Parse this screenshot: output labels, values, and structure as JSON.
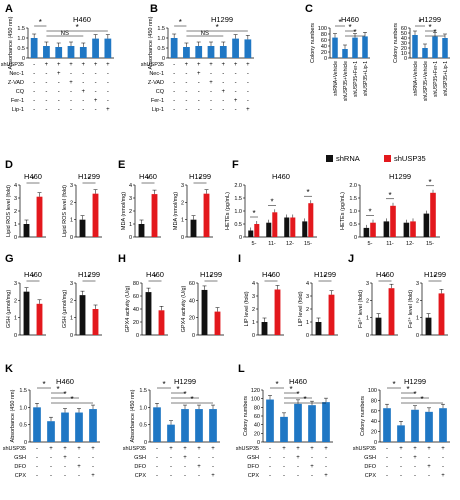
{
  "colors": {
    "blue": "#1f77c4",
    "black": "#111111",
    "red": "#e3181d"
  },
  "legend": {
    "items": [
      {
        "label": "shRNA",
        "color": "#111111"
      },
      {
        "label": "shUSP35",
        "color": "#e3181d"
      }
    ]
  },
  "chart_data": [
    {
      "panel": "A",
      "type": "bar",
      "title": "H460",
      "ylabel": "Absorbance (450 nm)",
      "ylim": [
        0,
        1.5
      ],
      "yticks": [
        "0",
        "0.5",
        "1.0",
        "1.5"
      ],
      "values": [
        1.0,
        0.6,
        0.55,
        0.6,
        0.55,
        0.97,
        0.97
      ],
      "rows": [
        {
          "label": "shUSP35",
          "signs": [
            "-",
            "+",
            "+",
            "+",
            "+",
            "+",
            "+"
          ]
        },
        {
          "label": "Nec-1",
          "signs": [
            "-",
            "-",
            "+",
            "-",
            "-",
            "-",
            "-"
          ]
        },
        {
          "label": "Z-VAD",
          "signs": [
            "-",
            "-",
            "-",
            "+",
            "-",
            "-",
            "-"
          ]
        },
        {
          "label": "CQ",
          "signs": [
            "-",
            "-",
            "-",
            "-",
            "+",
            "-",
            "-"
          ]
        },
        {
          "label": "Fer-1",
          "signs": [
            "-",
            "-",
            "-",
            "-",
            "-",
            "+",
            "-"
          ]
        },
        {
          "label": "Lip-1",
          "signs": [
            "-",
            "-",
            "-",
            "-",
            "-",
            "-",
            "+"
          ]
        }
      ],
      "annotations": [
        "*",
        "*",
        "NS"
      ]
    },
    {
      "panel": "B",
      "type": "bar",
      "title": "H1299",
      "ylabel": "Absorbance (450 nm)",
      "ylim": [
        0,
        1.5
      ],
      "yticks": [
        "0",
        "0.5",
        "1.0",
        "1.5"
      ],
      "values": [
        1.0,
        0.55,
        0.6,
        0.6,
        0.6,
        0.97,
        0.93
      ],
      "rows": [
        {
          "label": "shUSP35",
          "signs": [
            "-",
            "+",
            "+",
            "+",
            "+",
            "+",
            "+"
          ]
        },
        {
          "label": "Nec-1",
          "signs": [
            "-",
            "-",
            "+",
            "-",
            "-",
            "-",
            "-"
          ]
        },
        {
          "label": "Z-VAD",
          "signs": [
            "-",
            "-",
            "-",
            "+",
            "-",
            "-",
            "-"
          ]
        },
        {
          "label": "CQ",
          "signs": [
            "-",
            "-",
            "-",
            "-",
            "+",
            "-",
            "-"
          ]
        },
        {
          "label": "Fer-1",
          "signs": [
            "-",
            "-",
            "-",
            "-",
            "-",
            "+",
            "-"
          ]
        },
        {
          "label": "Lip-1",
          "signs": [
            "-",
            "-",
            "-",
            "-",
            "-",
            "-",
            "+"
          ]
        }
      ],
      "annotations": [
        "*",
        "*",
        "NS"
      ]
    },
    {
      "panel": "C",
      "type": "bar",
      "title": "H460",
      "ylabel": "Colony numbers",
      "ylim": [
        0,
        100
      ],
      "yticks": [
        "0",
        "20",
        "40",
        "60",
        "80",
        "100"
      ],
      "categories": [
        "shRNA+Vehicle",
        "shUSP35+Vehicle",
        "shUSP35+Fer-1",
        "shUSP35+Lip-1"
      ],
      "values": [
        68,
        30,
        68,
        72
      ],
      "annotations": [
        "*",
        "*",
        "*"
      ]
    },
    {
      "panel": "C",
      "type": "bar",
      "title": "H1299",
      "ylabel": "Colony numbers",
      "ylim": [
        0,
        60
      ],
      "yticks": [
        "0",
        "10",
        "20",
        "30",
        "40",
        "50",
        "60"
      ],
      "categories": [
        "shRNA+Vehicle",
        "shUSP35+Vehicle",
        "shUSP35+Fer-1",
        "shUSP35+Lip-1"
      ],
      "values": [
        46,
        20,
        43,
        40
      ],
      "annotations": [
        "*",
        "*",
        "*"
      ]
    },
    {
      "panel": "D",
      "type": "bar",
      "title": "H460",
      "ylabel": "Lipid ROS level (fold)",
      "ylim": [
        0,
        4
      ],
      "yticks": [
        "0",
        "1",
        "2",
        "3",
        "4"
      ],
      "values": [
        1.0,
        3.1
      ],
      "annotations": [
        "*"
      ]
    },
    {
      "panel": "D",
      "type": "bar",
      "title": "H1299",
      "ylabel": "Lipid ROS level (fold)",
      "ylim": [
        0,
        3
      ],
      "yticks": [
        "0",
        "1",
        "2",
        "3"
      ],
      "values": [
        1.0,
        2.5
      ],
      "annotations": [
        "*"
      ]
    },
    {
      "panel": "E",
      "type": "bar",
      "title": "H460",
      "ylabel": "MDA (nmol/mg)",
      "ylim": [
        0,
        4
      ],
      "yticks": [
        "0",
        "1",
        "2",
        "3",
        "4"
      ],
      "values": [
        1.0,
        3.3
      ],
      "annotations": [
        "*"
      ]
    },
    {
      "panel": "E",
      "type": "bar",
      "title": "H1299",
      "ylabel": "MDA (nmol/mg)",
      "ylim": [
        0,
        3
      ],
      "yticks": [
        "0",
        "1",
        "2",
        "3"
      ],
      "values": [
        1.0,
        2.5
      ],
      "annotations": [
        "*"
      ]
    },
    {
      "panel": "F",
      "type": "grouped-bar",
      "title": "H460",
      "ylabel": "HETEs (pg/mL)",
      "ylim": [
        0,
        2.0
      ],
      "yticks": [
        "0",
        "0.5",
        "1.0",
        "1.5",
        "2.0"
      ],
      "categories": [
        "5-",
        "11-",
        "12-",
        "15-"
      ],
      "series": [
        {
          "name": "shRNA",
          "values": [
            0.25,
            0.55,
            0.75,
            0.6
          ]
        },
        {
          "name": "shUSP35",
          "values": [
            0.5,
            0.95,
            0.75,
            1.3
          ]
        }
      ],
      "annotations": [
        "*",
        "*",
        "*"
      ]
    },
    {
      "panel": "F",
      "type": "grouped-bar",
      "title": "H1299",
      "ylabel": "HETEs (pg/mL)",
      "ylim": [
        0,
        2.0
      ],
      "yticks": [
        "0",
        "0.5",
        "1.0",
        "1.5",
        "2.0"
      ],
      "categories": [
        "5-",
        "11-",
        "12-",
        "15-"
      ],
      "series": [
        {
          "name": "shRNA",
          "values": [
            0.35,
            0.6,
            0.55,
            0.9
          ]
        },
        {
          "name": "shUSP35",
          "values": [
            0.55,
            1.2,
            0.6,
            1.7
          ]
        }
      ],
      "annotations": [
        "*",
        "*",
        "*"
      ]
    },
    {
      "panel": "G",
      "type": "bar",
      "title": "H460",
      "ylabel": "GSH (μmol/mg)",
      "ylim": [
        0,
        3
      ],
      "yticks": [
        "0",
        "1",
        "2",
        "3"
      ],
      "values": [
        2.5,
        1.8
      ],
      "annotations": [
        "*"
      ]
    },
    {
      "panel": "G",
      "type": "bar",
      "title": "H1299",
      "ylabel": "GSH (μmol/mg)",
      "ylim": [
        0,
        3
      ],
      "yticks": [
        "0",
        "1",
        "2",
        "3"
      ],
      "values": [
        2.3,
        1.5
      ],
      "annotations": [
        "*"
      ]
    },
    {
      "panel": "H",
      "type": "bar",
      "title": "H460",
      "ylabel": "GPX4 activity (U/g)",
      "ylim": [
        0,
        80
      ],
      "yticks": [
        "0",
        "20",
        "40",
        "60",
        "80"
      ],
      "values": [
        66,
        38
      ],
      "annotations": [
        "*"
      ]
    },
    {
      "panel": "H",
      "type": "bar",
      "title": "H1299",
      "ylabel": "GPX4 activity (U/g)",
      "ylim": [
        0,
        60
      ],
      "yticks": [
        "0",
        "20",
        "40",
        "60"
      ],
      "values": [
        52,
        27
      ],
      "annotations": [
        "*"
      ]
    },
    {
      "panel": "I",
      "type": "bar",
      "title": "H460",
      "ylabel": "LIP level (fold)",
      "ylim": [
        0,
        4
      ],
      "yticks": [
        "0",
        "1",
        "2",
        "3",
        "4"
      ],
      "values": [
        1.0,
        3.5
      ],
      "annotations": [
        "*"
      ]
    },
    {
      "panel": "I",
      "type": "bar",
      "title": "H1299",
      "ylabel": "LIP level (fold)",
      "ylim": [
        0,
        4
      ],
      "yticks": [
        "0",
        "1",
        "2",
        "3",
        "4"
      ],
      "values": [
        1.0,
        3.1
      ],
      "annotations": [
        "*"
      ]
    },
    {
      "panel": "J",
      "type": "bar",
      "title": "H460",
      "ylabel": "Fe²⁺ level (fold)",
      "ylim": [
        0,
        3
      ],
      "yticks": [
        "0",
        "1",
        "2",
        "3"
      ],
      "values": [
        1.0,
        2.7
      ],
      "annotations": [
        "*"
      ]
    },
    {
      "panel": "J",
      "type": "bar",
      "title": "H1299",
      "ylabel": "Fe²⁺ level (fold)",
      "ylim": [
        0,
        3
      ],
      "yticks": [
        "0",
        "1",
        "2",
        "3"
      ],
      "values": [
        1.0,
        2.4
      ],
      "annotations": [
        "*"
      ]
    },
    {
      "panel": "K",
      "type": "bar",
      "title": "H460",
      "ylabel": "Absorbance (450 nm)",
      "ylim": [
        0,
        1.5
      ],
      "yticks": [
        "0",
        "0.5",
        "1.0",
        "1.5"
      ],
      "values": [
        1.0,
        0.6,
        0.85,
        0.85,
        0.95
      ],
      "rows": [
        {
          "label": "shUSP35",
          "signs": [
            "-",
            "+",
            "+",
            "+",
            "+"
          ]
        },
        {
          "label": "GSH",
          "signs": [
            "-",
            "-",
            "+",
            "-",
            "-"
          ]
        },
        {
          "label": "DFO",
          "signs": [
            "-",
            "-",
            "-",
            "+",
            "-"
          ]
        },
        {
          "label": "CPX",
          "signs": [
            "-",
            "-",
            "-",
            "-",
            "+"
          ]
        }
      ],
      "annotations": [
        "*",
        "*",
        "*",
        "*"
      ]
    },
    {
      "panel": "K",
      "type": "bar",
      "title": "H1299",
      "ylabel": "Absorbance (450 nm)",
      "ylim": [
        0,
        1.5
      ],
      "yticks": [
        "0",
        "0.5",
        "1.0",
        "1.5"
      ],
      "values": [
        1.0,
        0.5,
        0.95,
        0.95,
        0.95
      ],
      "rows": [
        {
          "label": "shUSP35",
          "signs": [
            "-",
            "+",
            "+",
            "+",
            "+"
          ]
        },
        {
          "label": "GSH",
          "signs": [
            "-",
            "-",
            "+",
            "-",
            "-"
          ]
        },
        {
          "label": "DFO",
          "signs": [
            "-",
            "-",
            "-",
            "+",
            "-"
          ]
        },
        {
          "label": "CPX",
          "signs": [
            "-",
            "-",
            "-",
            "-",
            "+"
          ]
        }
      ],
      "annotations": [
        "*",
        "*",
        "*",
        "*"
      ]
    },
    {
      "panel": "L",
      "type": "bar",
      "title": "H460",
      "ylabel": "Colony numbers",
      "ylim": [
        0,
        120
      ],
      "yticks": [
        "0",
        "20",
        "40",
        "60",
        "80",
        "100",
        "120"
      ],
      "values": [
        98,
        58,
        88,
        85,
        92
      ],
      "rows": [
        {
          "label": "shUSP35",
          "signs": [
            "-",
            "+",
            "+",
            "+",
            "+"
          ]
        },
        {
          "label": "GSH",
          "signs": [
            "-",
            "-",
            "+",
            "-",
            "-"
          ]
        },
        {
          "label": "DFO",
          "signs": [
            "-",
            "-",
            "-",
            "+",
            "-"
          ]
        },
        {
          "label": "CPX",
          "signs": [
            "-",
            "-",
            "-",
            "-",
            "+"
          ]
        }
      ],
      "annotations": [
        "*",
        "*",
        "*",
        "*"
      ]
    },
    {
      "panel": "L",
      "type": "bar",
      "title": "H1299",
      "ylabel": "Colony numbers",
      "ylim": [
        0,
        100
      ],
      "yticks": [
        "0",
        "20",
        "40",
        "60",
        "80",
        "100"
      ],
      "values": [
        65,
        32,
        62,
        58,
        65
      ],
      "rows": [
        {
          "label": "shUSP35",
          "signs": [
            "-",
            "+",
            "+",
            "+",
            "+"
          ]
        },
        {
          "label": "GSH",
          "signs": [
            "-",
            "-",
            "+",
            "-",
            "-"
          ]
        },
        {
          "label": "DFO",
          "signs": [
            "-",
            "-",
            "-",
            "+",
            "-"
          ]
        },
        {
          "label": "CPX",
          "signs": [
            "-",
            "-",
            "-",
            "-",
            "+"
          ]
        }
      ],
      "annotations": [
        "*",
        "*",
        "*",
        "*"
      ]
    }
  ]
}
